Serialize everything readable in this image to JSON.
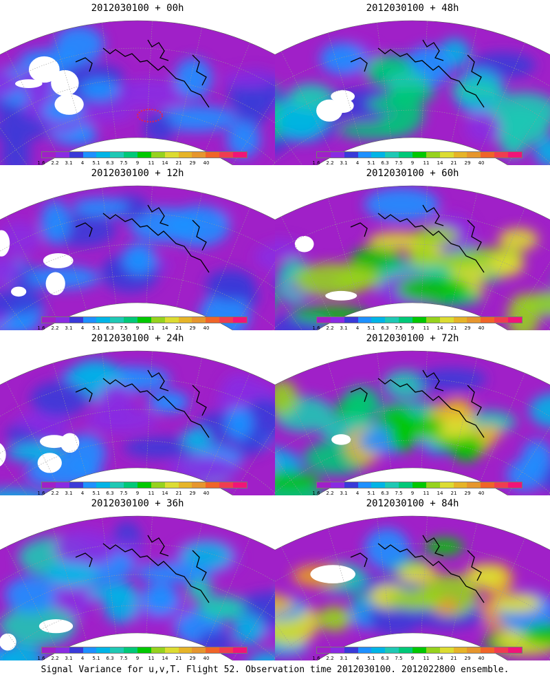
{
  "panels": [
    {
      "title": "2012030100 + 00h",
      "intensity": 0.18
    },
    {
      "title": "2012030100 + 48h",
      "intensity": 0.55
    },
    {
      "title": "2012030100 + 12h",
      "intensity": 0.25
    },
    {
      "title": "2012030100 + 60h",
      "intensity": 0.68
    },
    {
      "title": "2012030100 + 24h",
      "intensity": 0.33
    },
    {
      "title": "2012030100 + 72h",
      "intensity": 0.78
    },
    {
      "title": "2012030100 + 36h",
      "intensity": 0.42
    },
    {
      "title": "2012030100 + 84h",
      "intensity": 0.88
    }
  ],
  "colorbar": {
    "labels": [
      "1.6",
      "2.2",
      "3.1",
      "4",
      "5.1",
      "6.3",
      "7.5",
      "9",
      "11",
      "14",
      "21",
      "29",
      "40"
    ],
    "colors": [
      "#a020c8",
      "#8a2be2",
      "#3a3ad8",
      "#1e90ff",
      "#00b4e6",
      "#1fc8b4",
      "#00c878",
      "#00c800",
      "#96d21e",
      "#dcdc32",
      "#e6b428",
      "#e6962d",
      "#f06428",
      "#f03c50",
      "#f01478"
    ]
  },
  "caption": "Signal Variance for u,v,T. Flight 52. Observation time 2012030100. 2012022800 ensemble."
}
